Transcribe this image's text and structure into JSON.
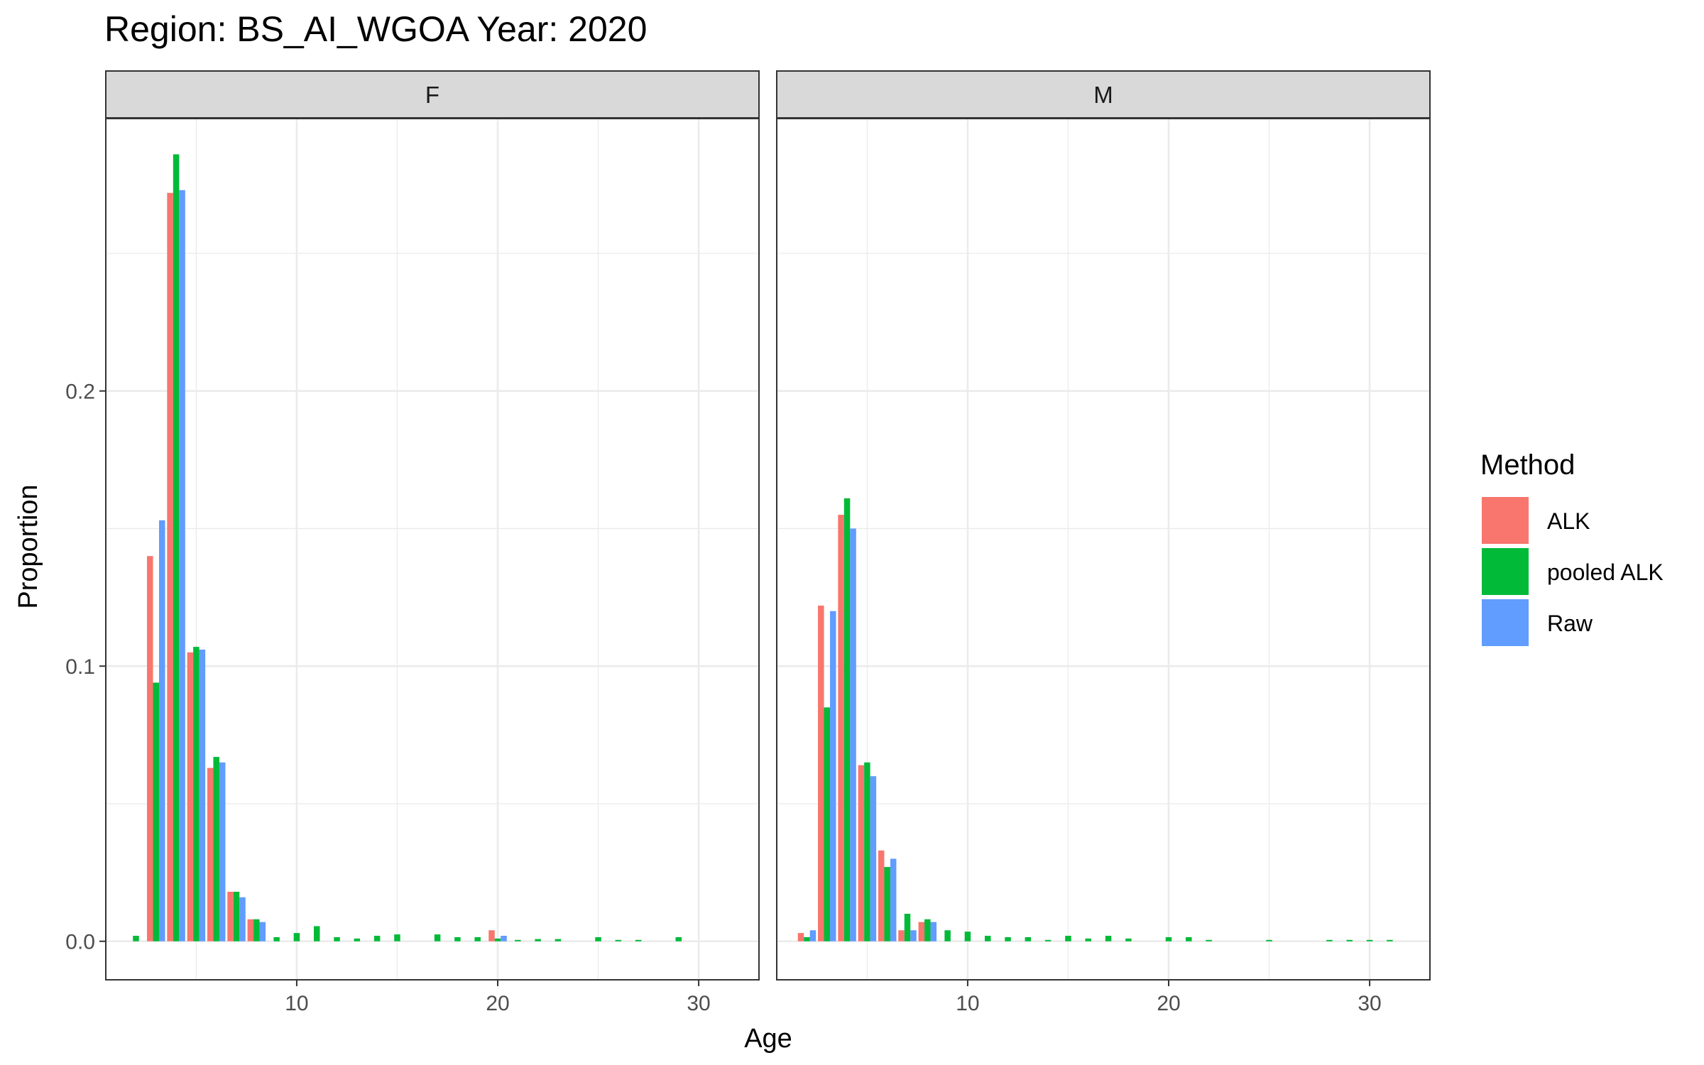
{
  "chart_data": {
    "type": "bar",
    "title": "Region: BS_AI_WGOA Year: 2020",
    "xlabel": "Age",
    "ylabel": "Proportion",
    "xlim": [
      0.5,
      33
    ],
    "ylim": [
      -0.014,
      0.299
    ],
    "x_ticks": [
      10,
      20,
      30
    ],
    "y_ticks": [
      0.0,
      0.1,
      0.2
    ],
    "y_tick_labels": [
      "0.0",
      "0.1",
      "0.2"
    ],
    "grid": true,
    "legend": {
      "title": "Method",
      "placement": "right",
      "entries": [
        {
          "name": "ALK",
          "color": "#F8766D"
        },
        {
          "name": "pooled ALK",
          "color": "#00BA38"
        },
        {
          "name": "Raw",
          "color": "#619CFF"
        }
      ]
    },
    "panels": [
      {
        "label": "F",
        "series": [
          {
            "name": "ALK",
            "x": [
              3,
              4,
              5,
              6,
              7,
              8,
              20
            ],
            "values": [
              0.14,
              0.272,
              0.105,
              0.063,
              0.018,
              0.008,
              0.004
            ]
          },
          {
            "name": "pooled ALK",
            "x": [
              2,
              3,
              4,
              5,
              6,
              7,
              8,
              9,
              10,
              11,
              12,
              13,
              14,
              15,
              17,
              18,
              19,
              20,
              21,
              22,
              23,
              25,
              26,
              27,
              29
            ],
            "values": [
              0.002,
              0.094,
              0.286,
              0.107,
              0.067,
              0.018,
              0.008,
              0.0015,
              0.003,
              0.0055,
              0.0015,
              0.001,
              0.002,
              0.0025,
              0.0025,
              0.0015,
              0.0015,
              0.001,
              0.0005,
              0.0008,
              0.0008,
              0.0015,
              0.0005,
              0.0005,
              0.0015
            ]
          },
          {
            "name": "Raw",
            "x": [
              3,
              4,
              5,
              6,
              7,
              8,
              20
            ],
            "values": [
              0.153,
              0.273,
              0.106,
              0.065,
              0.016,
              0.007,
              0.002
            ]
          }
        ]
      },
      {
        "label": "M",
        "series": [
          {
            "name": "ALK",
            "x": [
              2,
              3,
              4,
              5,
              6,
              7,
              8
            ],
            "values": [
              0.003,
              0.122,
              0.155,
              0.064,
              0.033,
              0.004,
              0.007
            ]
          },
          {
            "name": "pooled ALK",
            "x": [
              2,
              3,
              4,
              5,
              6,
              7,
              8,
              9,
              10,
              11,
              12,
              13,
              14,
              15,
              16,
              17,
              18,
              20,
              21,
              22,
              25,
              28,
              29,
              30,
              31
            ],
            "values": [
              0.0015,
              0.085,
              0.161,
              0.065,
              0.027,
              0.01,
              0.008,
              0.004,
              0.0035,
              0.002,
              0.0015,
              0.0015,
              0.0005,
              0.002,
              0.001,
              0.002,
              0.001,
              0.0015,
              0.0015,
              0.0005,
              0.0005,
              0.0005,
              0.0005,
              0.0005,
              0.0005
            ]
          },
          {
            "name": "Raw",
            "x": [
              2,
              3,
              4,
              5,
              6,
              7,
              8
            ],
            "values": [
              0.004,
              0.12,
              0.15,
              0.06,
              0.03,
              0.004,
              0.007
            ]
          }
        ]
      }
    ]
  }
}
